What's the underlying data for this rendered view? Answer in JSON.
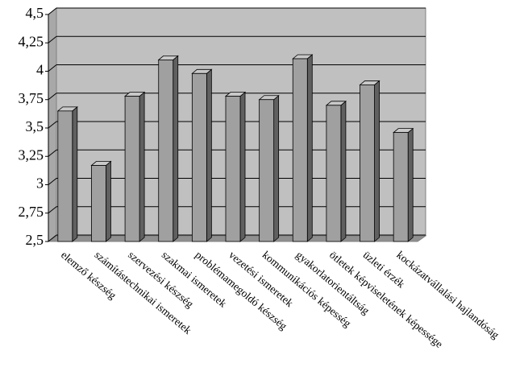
{
  "chart_data": {
    "type": "bar3d",
    "categories": [
      "elemző készség",
      "számítástechnikai ismeretek",
      "szervezési készség",
      "szakmai ismeretek",
      "problémamegoldó készség",
      "vezetési ismeretek",
      "kommunikációs képesség",
      "gyakorlatorientáltság",
      "ötletek képviseletének képessége",
      "üzleti érzék",
      "kockázatvállalási hajlandóság"
    ],
    "values": [
      3.65,
      3.17,
      3.78,
      4.1,
      3.98,
      3.78,
      3.75,
      4.11,
      3.7,
      3.88,
      3.46
    ],
    "color": "#a0a0a0",
    "ylim": [
      2.5,
      4.5
    ],
    "yticks": [
      {
        "value": 2.5,
        "label": "2,5"
      },
      {
        "value": 2.75,
        "label": "2,75"
      },
      3,
      {
        "value": 3.25,
        "label": "3,25"
      },
      {
        "value": 3.5,
        "label": "3,5"
      },
      {
        "value": 3.75,
        "label": "3,75"
      },
      4,
      {
        "value": 4.25,
        "label": "4,25"
      },
      {
        "value": 4.5,
        "label": "4,5"
      }
    ],
    "grid": true
  }
}
